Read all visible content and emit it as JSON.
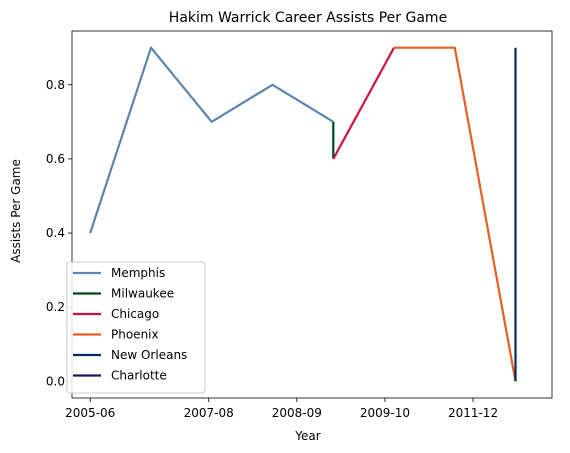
{
  "chart_data": {
    "type": "line",
    "title": "Hakim Warrick Career Assists Per Game",
    "xlabel": "Year",
    "ylabel": "Assists Per Game",
    "x_tick_labels": [
      "2005-06",
      "2007-08",
      "2008-09",
      "2009-10",
      "2011-12"
    ],
    "y_tick_labels": [
      "0.0",
      "0.2",
      "0.4",
      "0.6",
      "0.8"
    ],
    "y_ticks": [
      0.0,
      0.2,
      0.4,
      0.6,
      0.8
    ],
    "ylim": [
      -0.045,
      0.945
    ],
    "xlim": [
      2005.6,
      2013.5
    ],
    "x_tick_positions": [
      2005.9,
      2007.85,
      2009.3,
      2010.75,
      2012.2
    ],
    "grid": false,
    "legend_position": "lower-left",
    "series": [
      {
        "name": "Memphis",
        "color": "#5b84b1",
        "points": [
          [
            2005.9,
            0.4
          ],
          [
            2006.9,
            0.9
          ],
          [
            2007.9,
            0.7
          ],
          [
            2008.9,
            0.8
          ],
          [
            2009.9,
            0.7
          ]
        ]
      },
      {
        "name": "Milwaukee",
        "color": "#00471b",
        "points": [
          [
            2009.9,
            0.7
          ],
          [
            2009.9,
            0.6
          ]
        ]
      },
      {
        "name": "Chicago",
        "color": "#ce1141",
        "points": [
          [
            2009.9,
            0.6
          ],
          [
            2010.9,
            0.9
          ]
        ]
      },
      {
        "name": "Phoenix",
        "color": "#e56020",
        "points": [
          [
            2010.9,
            0.9
          ],
          [
            2011.9,
            0.9
          ],
          [
            2012.9,
            0.0
          ]
        ]
      },
      {
        "name": "New Orleans",
        "color": "#002b5c",
        "points": [
          [
            2012.9,
            0.0
          ],
          [
            2012.9,
            0.9
          ]
        ]
      },
      {
        "name": "Charlotte",
        "color": "#1d1160",
        "points": []
      }
    ]
  }
}
